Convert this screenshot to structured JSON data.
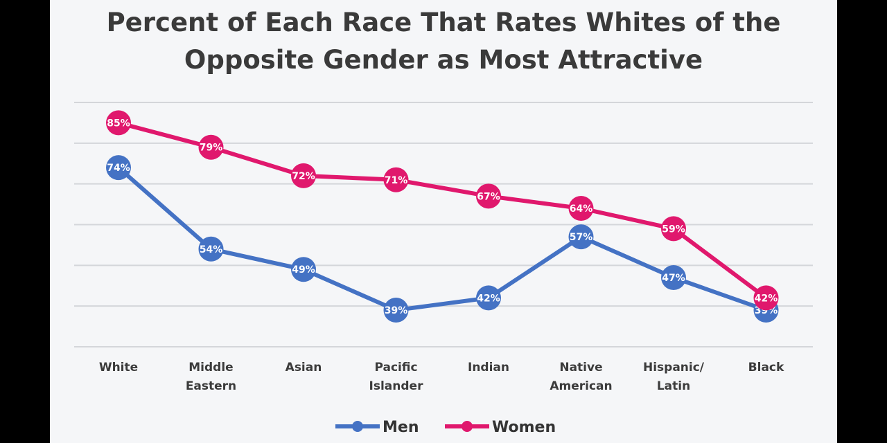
{
  "chart_data": {
    "type": "line",
    "title_line1": "Percent of Each Race That Rates Whites of the",
    "title_line2": "Opposite Gender as Most Attractive",
    "categories": [
      [
        "White"
      ],
      [
        "Middle",
        "Eastern"
      ],
      [
        "Asian"
      ],
      [
        "Pacific",
        "Islander"
      ],
      [
        "Indian"
      ],
      [
        "Native",
        "American"
      ],
      [
        "Hispanic/",
        "Latin"
      ],
      [
        "Black"
      ]
    ],
    "series": [
      {
        "name": "Men",
        "color": "#4472c4",
        "values": [
          74,
          54,
          49,
          39,
          42,
          57,
          47,
          39
        ],
        "labels": [
          "74%",
          "54%",
          "49%",
          "39%",
          "42%",
          "57%",
          "47%",
          "39%"
        ]
      },
      {
        "name": "Women",
        "color": "#e0186d",
        "values": [
          85,
          79,
          72,
          71,
          67,
          64,
          59,
          42
        ],
        "labels": [
          "85%",
          "79%",
          "72%",
          "71%",
          "67%",
          "64%",
          "59%",
          "42%"
        ]
      }
    ],
    "ylim": [
      30,
      90
    ],
    "grid": true,
    "legend": "bottom-center"
  }
}
